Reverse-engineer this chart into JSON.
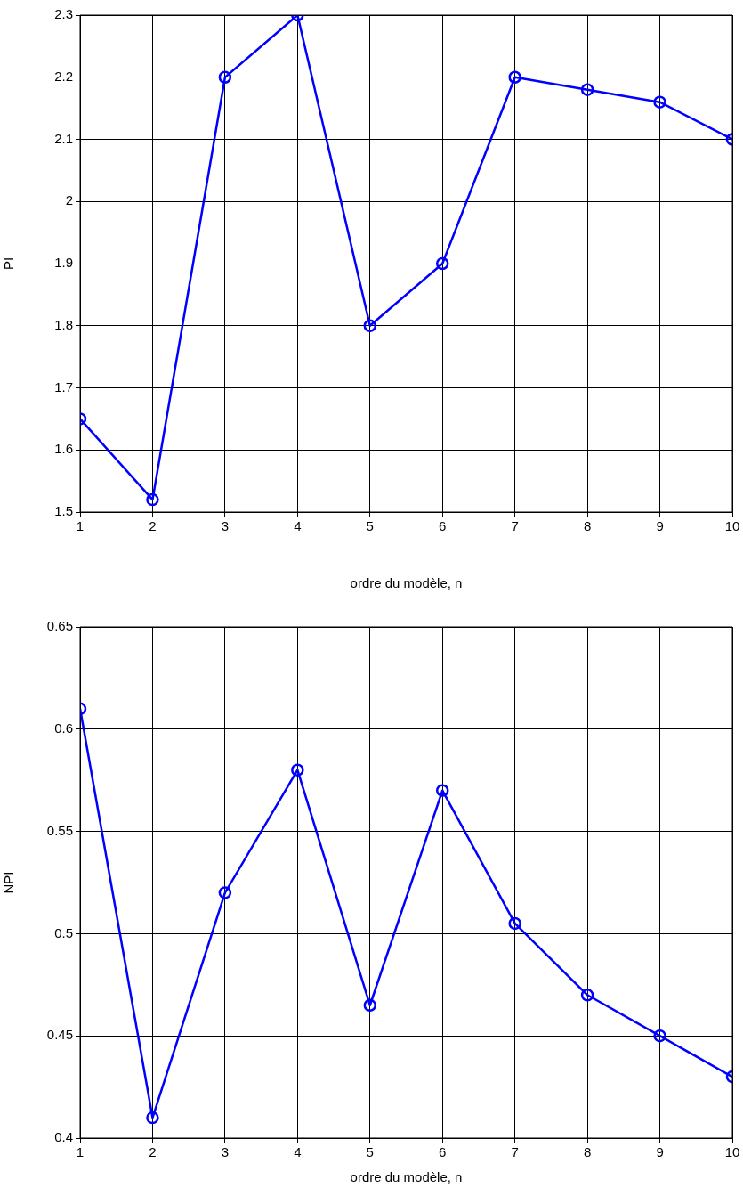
{
  "chart_data": [
    {
      "type": "line",
      "xlabel": "ordre du modèle, n",
      "ylabel": "PI",
      "x": [
        1,
        2,
        3,
        4,
        5,
        6,
        7,
        8,
        9,
        10
      ],
      "series": [
        {
          "color": "#0000ff",
          "values": [
            1.65,
            1.52,
            2.2,
            2.3,
            1.8,
            1.9,
            2.2,
            2.18,
            2.16,
            2.1
          ]
        }
      ],
      "xlim": [
        1,
        10
      ],
      "xticks": [
        1,
        2,
        3,
        4,
        5,
        6,
        7,
        8,
        9,
        10
      ],
      "ylim": [
        1.5,
        2.3
      ],
      "yticks": [
        1.5,
        1.6,
        1.7,
        1.8,
        1.9,
        2,
        2.1,
        2.2,
        2.3
      ],
      "grid": true,
      "marker": "circle",
      "line_style": "solid"
    },
    {
      "type": "line",
      "xlabel": "ordre du modèle, n",
      "ylabel": "NPI",
      "x": [
        1,
        2,
        3,
        4,
        5,
        6,
        7,
        8,
        9,
        10
      ],
      "series": [
        {
          "color": "#0000ff",
          "values": [
            0.61,
            0.41,
            0.52,
            0.58,
            0.465,
            0.57,
            0.505,
            0.47,
            0.45,
            0.43
          ]
        }
      ],
      "xlim": [
        1,
        10
      ],
      "xticks": [
        1,
        2,
        3,
        4,
        5,
        6,
        7,
        8,
        9,
        10
      ],
      "ylim": [
        0.4,
        0.65
      ],
      "yticks": [
        0.4,
        0.45,
        0.5,
        0.55,
        0.6,
        0.65
      ],
      "grid": true,
      "marker": "circle",
      "line_style": "solid"
    }
  ]
}
